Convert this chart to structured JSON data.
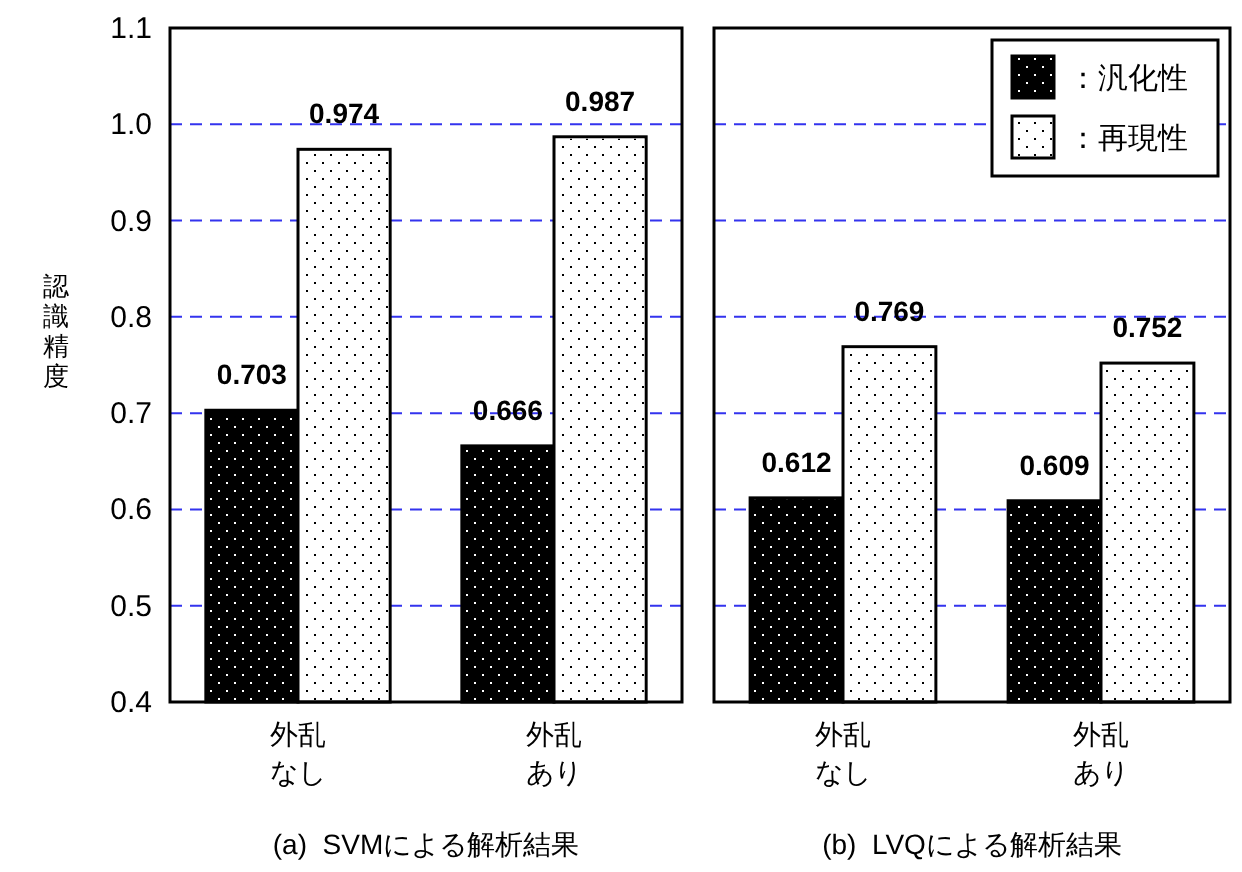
{
  "chart_data": [
    {
      "type": "bar",
      "title": "(a)  SVMによる解析結果",
      "ylabel": "認識精度",
      "categories": [
        "外乱なし",
        "外乱あり"
      ],
      "series": [
        {
          "color": "#000000",
          "values": [
            0.703,
            0.666
          ]
        },
        {
          "color": "#ffffff",
          "values": [
            0.974,
            0.987
          ]
        }
      ],
      "ylim": [
        0.4,
        1.1
      ],
      "yticks": [
        {
          "value": 0.4,
          "label": "0.4"
        },
        {
          "value": 0.5,
          "label": "0.5"
        },
        {
          "value": 0.6,
          "label": "0.6"
        },
        {
          "value": 0.7,
          "label": "0.7"
        },
        {
          "value": 0.8,
          "label": "0.8"
        },
        {
          "value": 0.9,
          "label": "0.9"
        },
        {
          "value": 1.0,
          "label": "1.0"
        },
        {
          "value": 1.1,
          "label": "1.1"
        }
      ],
      "grid": "y",
      "data_labels": true,
      "legend": false
    },
    {
      "type": "bar",
      "title": "(b)  LVQによる解析結果",
      "categories": [
        "外乱なし",
        "外乱あり"
      ],
      "series": [
        {
          "name": "：汎化性",
          "color": "#000000",
          "values": [
            0.612,
            0.609
          ]
        },
        {
          "name": "：再現性",
          "color": "#ffffff",
          "values": [
            0.769,
            0.752
          ]
        }
      ],
      "ylim": [
        0.4,
        1.1
      ],
      "yticks": [
        0.4,
        0.5,
        0.6,
        0.7,
        0.8,
        0.9,
        1.0,
        1.1
      ],
      "tick_labels": "x",
      "grid": "y",
      "data_labels": true,
      "legend": "top right"
    }
  ]
}
